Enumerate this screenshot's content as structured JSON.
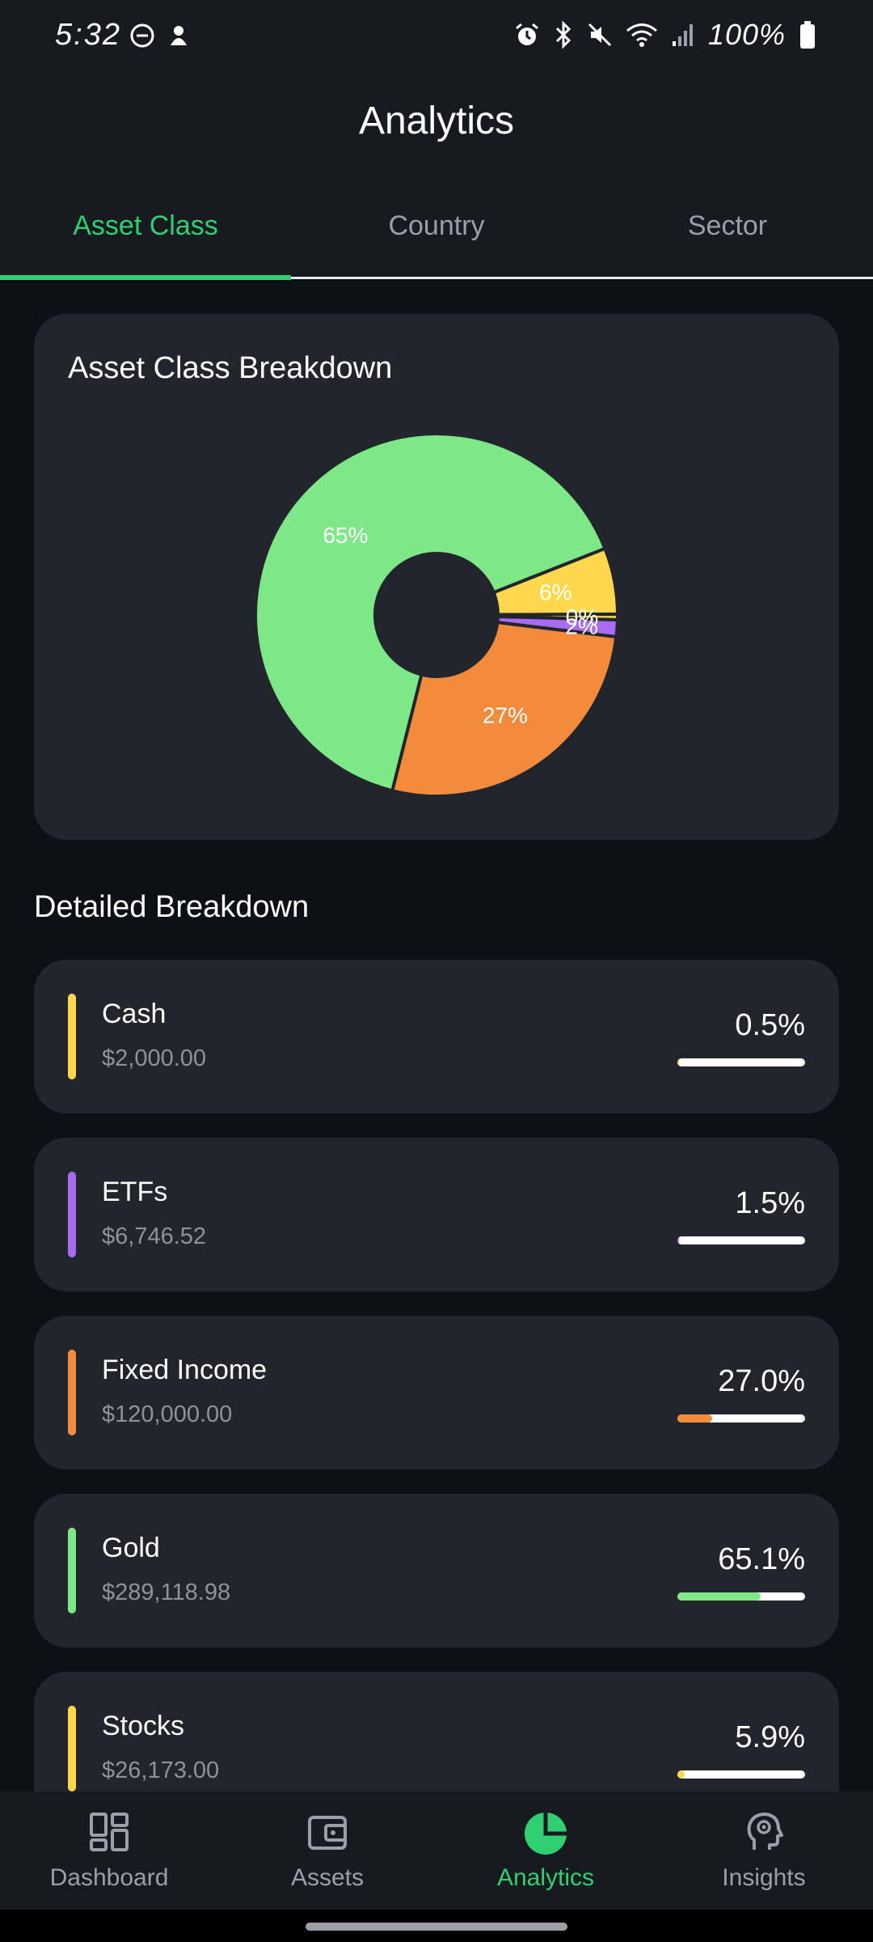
{
  "status_bar": {
    "time": "5:32",
    "battery": "100%",
    "icons": [
      "dnd-icon",
      "notification-icon",
      "alarm-icon",
      "bluetooth-icon",
      "mute-icon",
      "wifi-icon",
      "signal-icon",
      "battery-icon"
    ]
  },
  "header": {
    "title": "Analytics",
    "tabs": [
      {
        "label": "Asset Class",
        "active": true
      },
      {
        "label": "Country",
        "active": false
      },
      {
        "label": "Sector",
        "active": false
      }
    ]
  },
  "chart_card": {
    "title": "Asset Class Breakdown"
  },
  "chart_data": {
    "type": "pie",
    "donut": true,
    "title": "Asset Class Breakdown",
    "slices": [
      {
        "label": "Stocks",
        "value": 5.9,
        "display": "6%",
        "color": "#ffd84d"
      },
      {
        "label": "Cash",
        "value": 0.5,
        "display": "0%",
        "color": "#ffd84d"
      },
      {
        "label": "ETFs",
        "value": 1.5,
        "display": "2%",
        "color": "#a86cf0"
      },
      {
        "label": "Fixed Income",
        "value": 27.0,
        "display": "27%",
        "color": "#f28c3c"
      },
      {
        "label": "Gold",
        "value": 65.1,
        "display": "65%",
        "color": "#7ee787"
      }
    ]
  },
  "detail": {
    "title": "Detailed Breakdown",
    "rows": [
      {
        "name": "Cash",
        "amount": "$2,000.00",
        "percent": "0.5%",
        "fraction": 0.005,
        "color": "#ffd84d"
      },
      {
        "name": "ETFs",
        "amount": "$6,746.52",
        "percent": "1.5%",
        "fraction": 0.015,
        "color": "#a86cf0"
      },
      {
        "name": "Fixed Income",
        "amount": "$120,000.00",
        "percent": "27.0%",
        "fraction": 0.27,
        "color": "#f28c3c"
      },
      {
        "name": "Gold",
        "amount": "$289,118.98",
        "percent": "65.1%",
        "fraction": 0.651,
        "color": "#7ee787"
      },
      {
        "name": "Stocks",
        "amount": "$26,173.00",
        "percent": "5.9%",
        "fraction": 0.059,
        "color": "#ffd84d"
      }
    ]
  },
  "nav": {
    "items": [
      {
        "label": "Dashboard",
        "icon": "dashboard-icon",
        "active": false
      },
      {
        "label": "Assets",
        "icon": "wallet-icon",
        "active": false
      },
      {
        "label": "Analytics",
        "icon": "pie-chart-icon",
        "active": true
      },
      {
        "label": "Insights",
        "icon": "brain-icon",
        "active": false
      }
    ]
  },
  "colors": {
    "accent": "#2fcf72",
    "background": "#0d1014",
    "surface": "#22262c"
  }
}
